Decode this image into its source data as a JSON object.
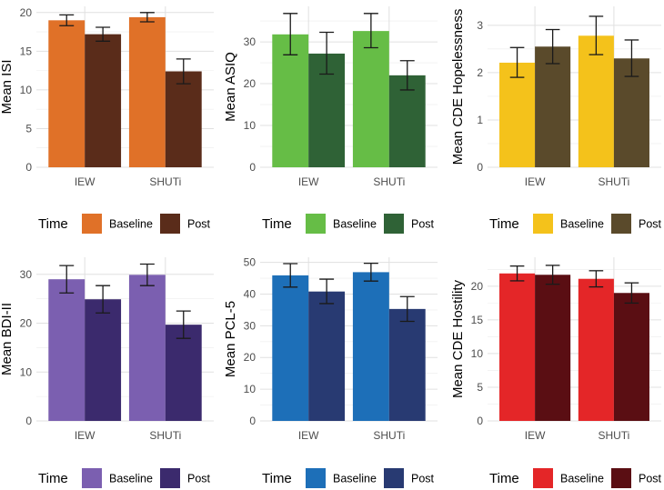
{
  "chart_data": [
    {
      "type": "bar",
      "ylabel": "Mean ISI",
      "categories": [
        "IEW",
        "SHUTi"
      ],
      "series": [
        {
          "name": "Baseline",
          "values": [
            19.0,
            19.4
          ],
          "err_low": [
            18.3,
            18.8
          ],
          "err_high": [
            19.7,
            20.0
          ]
        },
        {
          "name": "Post",
          "values": [
            17.2,
            12.4
          ],
          "err_low": [
            16.3,
            10.8
          ],
          "err_high": [
            18.1,
            14.0
          ]
        }
      ],
      "ylim": [
        0,
        20.8
      ],
      "yticks": [
        0,
        5,
        10,
        15,
        20
      ],
      "colors": [
        "#e07128",
        "#5a2c1a"
      ],
      "legend": {
        "title": "Time",
        "labels": [
          "Baseline",
          "Post"
        ]
      }
    },
    {
      "type": "bar",
      "ylabel": "Mean ASIQ",
      "categories": [
        "IEW",
        "SHUTi"
      ],
      "series": [
        {
          "name": "Baseline",
          "values": [
            31.8,
            32.6
          ],
          "err_low": [
            26.9,
            28.6
          ],
          "err_high": [
            36.8,
            36.8
          ]
        },
        {
          "name": "Post",
          "values": [
            27.2,
            22.0
          ],
          "err_low": [
            22.3,
            18.5
          ],
          "err_high": [
            32.3,
            25.5
          ]
        }
      ],
      "ylim": [
        0,
        38.5
      ],
      "yticks": [
        0,
        10,
        20,
        30
      ],
      "colors": [
        "#66bd46",
        "#2f6236"
      ],
      "legend": {
        "title": "Time",
        "labels": [
          "Baseline",
          "Post"
        ]
      }
    },
    {
      "type": "bar",
      "ylabel": "Mean CDE Hopelessness",
      "categories": [
        "IEW",
        "SHUTi"
      ],
      "series": [
        {
          "name": "Baseline",
          "values": [
            2.21,
            2.78
          ],
          "err_low": [
            1.9,
            2.38
          ],
          "err_high": [
            2.53,
            3.19
          ]
        },
        {
          "name": "Post",
          "values": [
            2.55,
            2.3
          ],
          "err_low": [
            2.19,
            1.92
          ],
          "err_high": [
            2.91,
            2.69
          ]
        }
      ],
      "ylim": [
        0,
        3.4
      ],
      "yticks": [
        0,
        1,
        2,
        3
      ],
      "colors": [
        "#f4c21b",
        "#5a4a2b"
      ],
      "legend": {
        "title": "Time",
        "labels": [
          "Baseline",
          "Post"
        ]
      }
    },
    {
      "type": "bar",
      "ylabel": "Mean BDI-II",
      "categories": [
        "IEW",
        "SHUTi"
      ],
      "series": [
        {
          "name": "Baseline",
          "values": [
            29.0,
            29.9
          ],
          "err_low": [
            26.2,
            27.7
          ],
          "err_high": [
            31.8,
            32.1
          ]
        },
        {
          "name": "Post",
          "values": [
            24.9,
            19.7
          ],
          "err_low": [
            22.1,
            16.9
          ],
          "err_high": [
            27.7,
            22.5
          ]
        }
      ],
      "ylim": [
        0,
        33.5
      ],
      "yticks": [
        0,
        10,
        20,
        30
      ],
      "colors": [
        "#7b5fb0",
        "#3b2a6d"
      ],
      "legend": {
        "title": "Time",
        "labels": [
          "Baseline",
          "Post"
        ]
      }
    },
    {
      "type": "bar",
      "ylabel": "Mean PCL-5",
      "categories": [
        "IEW",
        "SHUTi"
      ],
      "series": [
        {
          "name": "Baseline",
          "values": [
            45.9,
            46.9
          ],
          "err_low": [
            42.2,
            44.1
          ],
          "err_high": [
            49.6,
            49.7
          ]
        },
        {
          "name": "Post",
          "values": [
            40.8,
            35.3
          ],
          "err_low": [
            37.0,
            31.4
          ],
          "err_high": [
            44.7,
            39.2
          ]
        }
      ],
      "ylim": [
        0,
        51.6
      ],
      "yticks": [
        0,
        10,
        20,
        30,
        40,
        50
      ],
      "colors": [
        "#1d6fb8",
        "#283a72"
      ],
      "legend": {
        "title": "Time",
        "labels": [
          "Baseline",
          "Post"
        ]
      }
    },
    {
      "type": "bar",
      "ylabel": "Mean CDE Hostility",
      "categories": [
        "IEW",
        "SHUTi"
      ],
      "series": [
        {
          "name": "Baseline",
          "values": [
            21.9,
            21.1
          ],
          "err_low": [
            20.8,
            19.9
          ],
          "err_high": [
            23.0,
            22.3
          ]
        },
        {
          "name": "Post",
          "values": [
            21.7,
            19.0
          ],
          "err_low": [
            20.3,
            17.5
          ],
          "err_high": [
            23.1,
            20.5
          ]
        }
      ],
      "ylim": [
        0,
        24.3
      ],
      "yticks": [
        0,
        5,
        10,
        15,
        20
      ],
      "colors": [
        "#e42628",
        "#5a0e13"
      ],
      "legend": {
        "title": "Time",
        "labels": [
          "Baseline",
          "Post"
        ]
      }
    }
  ]
}
